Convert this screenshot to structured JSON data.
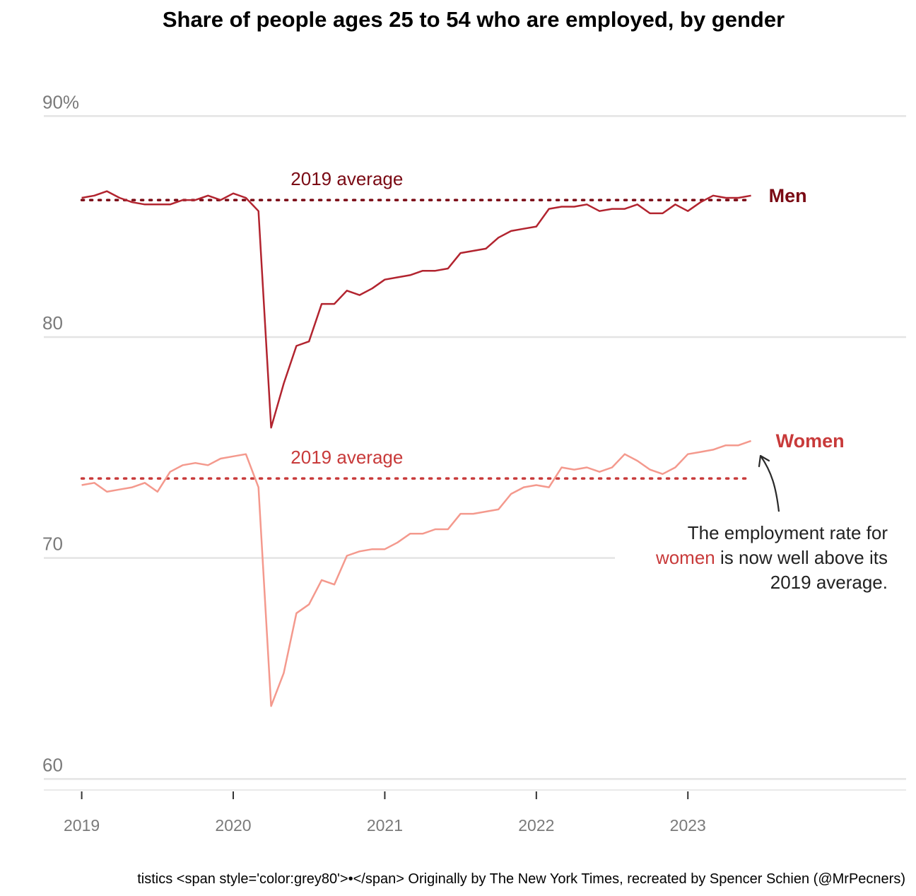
{
  "chart_data": {
    "type": "line",
    "title": "Share of people ages 25 to 54 who are employed, by gender",
    "y_ticks": [
      {
        "value": 90,
        "label": "90%"
      },
      {
        "value": 80,
        "label": "80"
      },
      {
        "value": 70,
        "label": "70"
      },
      {
        "value": 60,
        "label": "60"
      }
    ],
    "x_ticks": [
      {
        "value": 2019,
        "label": "2019"
      },
      {
        "value": 2020,
        "label": "2020"
      },
      {
        "value": 2021,
        "label": "2021"
      },
      {
        "value": 2022,
        "label": "2022"
      },
      {
        "value": 2023,
        "label": "2023"
      }
    ],
    "ylim": [
      59.5,
      91
    ],
    "xlim": [
      2018.75,
      2024.44
    ],
    "grid": "horizontal",
    "x": [
      "2019-01",
      "2019-02",
      "2019-03",
      "2019-04",
      "2019-05",
      "2019-06",
      "2019-07",
      "2019-08",
      "2019-09",
      "2019-10",
      "2019-11",
      "2019-12",
      "2020-01",
      "2020-02",
      "2020-03",
      "2020-04",
      "2020-05",
      "2020-06",
      "2020-07",
      "2020-08",
      "2020-09",
      "2020-10",
      "2020-11",
      "2020-12",
      "2021-01",
      "2021-02",
      "2021-03",
      "2021-04",
      "2021-05",
      "2021-06",
      "2021-07",
      "2021-08",
      "2021-09",
      "2021-10",
      "2021-11",
      "2021-12",
      "2022-01",
      "2022-02",
      "2022-03",
      "2022-04",
      "2022-05",
      "2022-06",
      "2022-07",
      "2022-08",
      "2022-09",
      "2022-10",
      "2022-11",
      "2022-12",
      "2023-01",
      "2023-02",
      "2023-03",
      "2023-04",
      "2023-05",
      "2023-06"
    ],
    "series": [
      {
        "name": "Men",
        "color": "#b2242f",
        "label_color": "#7a0a14",
        "average": 86.2,
        "average_label": "2019 average",
        "average_color": "#7a0a14",
        "values": [
          86.3,
          86.4,
          86.6,
          86.3,
          86.1,
          86.0,
          86.0,
          86.0,
          86.2,
          86.2,
          86.4,
          86.2,
          86.5,
          86.3,
          85.7,
          75.9,
          77.9,
          79.6,
          79.8,
          81.5,
          81.5,
          82.1,
          81.9,
          82.2,
          82.6,
          82.7,
          82.8,
          83.0,
          83.0,
          83.1,
          83.8,
          83.9,
          84.0,
          84.5,
          84.8,
          84.9,
          85.0,
          85.8,
          85.9,
          85.9,
          86.0,
          85.7,
          85.8,
          85.8,
          86.0,
          85.6,
          85.6,
          86.0,
          85.7,
          86.1,
          86.4,
          86.3,
          86.3,
          86.4
        ]
      },
      {
        "name": "Women",
        "color": "#f4998d",
        "label_color": "#c83a3a",
        "average": 73.6,
        "average_label": "2019 average",
        "average_color": "#c83a3a",
        "values": [
          73.3,
          73.4,
          73.0,
          73.1,
          73.2,
          73.4,
          73.0,
          73.9,
          74.2,
          74.3,
          74.2,
          74.5,
          74.6,
          74.7,
          73.2,
          63.3,
          64.8,
          67.5,
          67.9,
          69.0,
          68.8,
          70.1,
          70.3,
          70.4,
          70.4,
          70.7,
          71.1,
          71.1,
          71.3,
          71.3,
          72.0,
          72.0,
          72.1,
          72.2,
          72.9,
          73.2,
          73.3,
          73.2,
          74.1,
          74.0,
          74.1,
          73.9,
          74.1,
          74.7,
          74.4,
          74.0,
          73.8,
          74.1,
          74.7,
          74.8,
          74.9,
          75.1,
          75.1,
          75.3
        ]
      }
    ],
    "annotation": {
      "line1": "The employment rate for",
      "highlight": "women",
      "line2_rest": " is now well above its",
      "line3": "2019 average.",
      "highlight_color": "#c83a3a"
    },
    "caption": "tistics <span style='color:grey80'>•</span> Originally by The New York Times, recreated by Spencer Schien (@MrPecners)"
  }
}
